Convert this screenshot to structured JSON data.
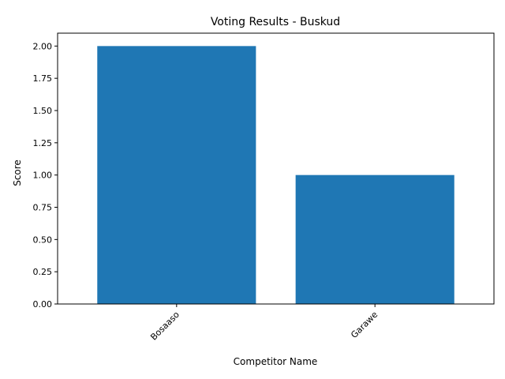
{
  "chart_data": {
    "type": "bar",
    "title": "Voting Results - Buskud",
    "xlabel": "Competitor Name",
    "ylabel": "Score",
    "categories": [
      "Bosaaso",
      "Garawe"
    ],
    "values": [
      2,
      1
    ],
    "ylim": [
      0,
      2.1
    ],
    "yticks": [
      "0.00",
      "0.25",
      "0.50",
      "0.75",
      "1.00",
      "1.25",
      "1.50",
      "1.75",
      "2.00"
    ],
    "x_tick_rotation_deg": 45,
    "grid": false,
    "bar_color": "#1f77b4"
  }
}
